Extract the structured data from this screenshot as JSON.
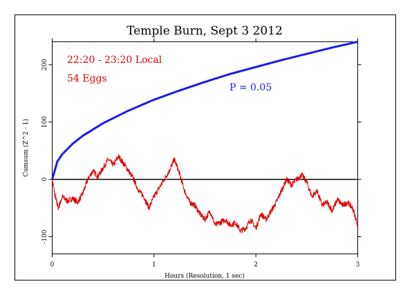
{
  "chart_data": {
    "type": "line",
    "title": "Temple Burn, Sept 3 2012",
    "xlabel": "Hours (Resolution, 1 sec)",
    "ylabel": "Cumsum (Z^2 - 1)",
    "xlim": [
      0,
      3
    ],
    "ylim": [
      -130,
      240
    ],
    "x_ticks": [
      "0",
      "1",
      "2",
      "3"
    ],
    "y_ticks": [
      "-100",
      "0",
      "100",
      "200"
    ],
    "grid": false,
    "annotations": {
      "time_window": "22:20 - 23:20 Local",
      "eggs": "54 Eggs",
      "p_label": "P = 0.05"
    },
    "reference_line": {
      "y": 0
    },
    "colors": {
      "cumsum": "#e00000",
      "p_curve": "#1a1aee",
      "zero_line": "#000000",
      "title": "#000000"
    },
    "series": [
      {
        "role": "p_curve",
        "x": [
          0,
          0.05,
          0.1,
          0.2,
          0.3,
          0.5,
          0.75,
          1.0,
          1.25,
          1.5,
          1.75,
          2.0,
          2.25,
          2.5,
          2.75,
          3.0
        ],
        "values": [
          0,
          31,
          44,
          62,
          76,
          98,
          120,
          139,
          155,
          170,
          184,
          196,
          208,
          219,
          230,
          240
        ]
      },
      {
        "role": "cumsum",
        "x": [
          0,
          0.03,
          0.06,
          0.1,
          0.15,
          0.2,
          0.25,
          0.3,
          0.35,
          0.4,
          0.45,
          0.5,
          0.55,
          0.6,
          0.65,
          0.7,
          0.75,
          0.8,
          0.85,
          0.9,
          0.95,
          1.0,
          1.05,
          1.1,
          1.15,
          1.2,
          1.25,
          1.3,
          1.35,
          1.4,
          1.45,
          1.5,
          1.55,
          1.6,
          1.65,
          1.7,
          1.75,
          1.8,
          1.85,
          1.9,
          1.95,
          2.0,
          2.05,
          2.1,
          2.15,
          2.2,
          2.25,
          2.3,
          2.35,
          2.4,
          2.45,
          2.5,
          2.55,
          2.6,
          2.65,
          2.7,
          2.75,
          2.8,
          2.85,
          2.9,
          2.95,
          3.0
        ],
        "values": [
          0,
          -30,
          -50,
          -30,
          -38,
          -33,
          -40,
          -25,
          0,
          15,
          5,
          20,
          35,
          25,
          40,
          28,
          15,
          0,
          -20,
          -30,
          -50,
          -30,
          -15,
          0,
          15,
          35,
          10,
          -20,
          -40,
          -45,
          -60,
          -70,
          -55,
          -80,
          -75,
          -70,
          -80,
          -75,
          -90,
          -85,
          -70,
          -85,
          -60,
          -70,
          -55,
          -40,
          -20,
          0,
          -10,
          0,
          8,
          -5,
          -30,
          -20,
          -45,
          -40,
          -55,
          -35,
          -45,
          -40,
          -50,
          -80
        ]
      }
    ]
  }
}
